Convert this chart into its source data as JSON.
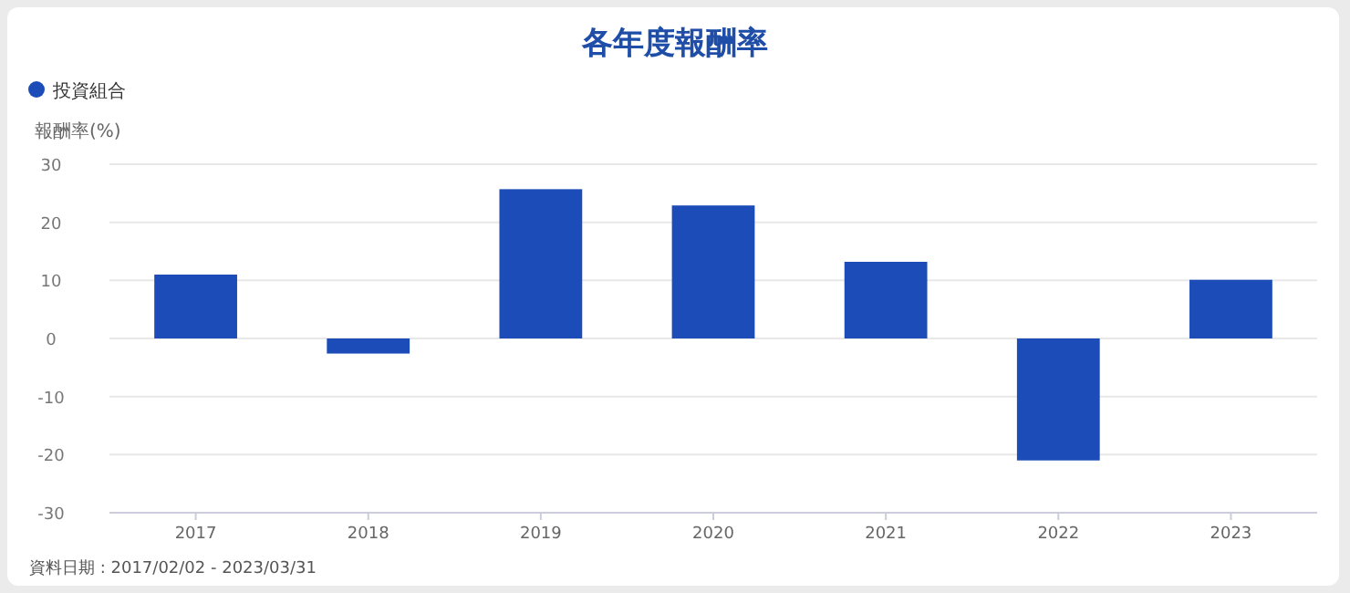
{
  "chart_data": {
    "type": "bar",
    "title": "各年度報酬率",
    "ylabel": "報酬率(%)",
    "categories": [
      "2017",
      "2018",
      "2019",
      "2020",
      "2021",
      "2022",
      "2023"
    ],
    "series": [
      {
        "name": "投資組合",
        "color": "#1c4cb8",
        "values": [
          11.0,
          -2.6,
          25.7,
          22.9,
          13.2,
          -21.0,
          10.1
        ]
      }
    ],
    "ylim": [
      -30,
      30
    ],
    "yticks": [
      -30,
      -20,
      -10,
      0,
      10,
      20,
      30
    ],
    "grid": "y",
    "legend": "top left",
    "annotations": [
      "資料日期 : 2017/02/02 - 2023/03/31"
    ]
  }
}
